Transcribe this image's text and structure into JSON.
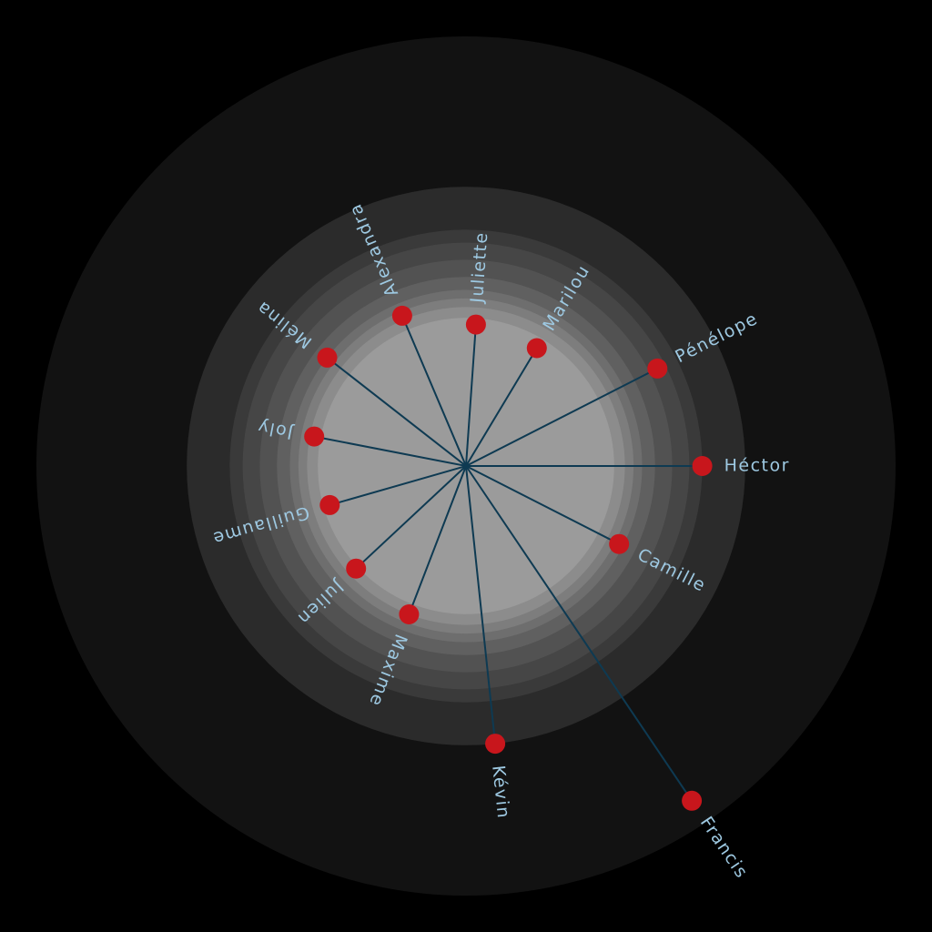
{
  "colors": {
    "background": "#000000",
    "node_fill": "#c8161c",
    "edge_stroke": "#0e3a52",
    "label_text": "#9ec9e2",
    "rings": [
      "#121212",
      "#2b2b2b",
      "#3a3a3a",
      "#464646",
      "#525252",
      "#606060",
      "#6e6e6e",
      "#7d7d7d",
      "#8c8c8c",
      "#9b9b9b"
    ]
  },
  "center_node": "",
  "nodes": [
    {
      "label": "Héctor",
      "angle": 0,
      "distance": 0.55
    },
    {
      "label": "Camille",
      "angle": 27,
      "distance": 0.4
    },
    {
      "label": "Francis",
      "angle": 56,
      "distance": 0.94
    },
    {
      "label": "Kévin",
      "angle": 84,
      "distance": 0.65
    },
    {
      "label": "Maxime",
      "angle": 111,
      "distance": 0.37
    },
    {
      "label": "Julien",
      "angle": 137,
      "distance": 0.35
    },
    {
      "label": "Guillaume",
      "angle": 164,
      "distance": 0.33
    },
    {
      "label": "Joly",
      "angle": 191,
      "distance": 0.36
    },
    {
      "label": "Mélina",
      "angle": 218,
      "distance": 0.41
    },
    {
      "label": "Alexandra",
      "angle": 247,
      "distance": 0.38
    },
    {
      "label": "Juliette",
      "angle": 274,
      "distance": 0.33
    },
    {
      "label": "Marilou",
      "angle": 301,
      "distance": 0.32
    },
    {
      "label": "Pénélope",
      "angle": 333,
      "distance": 0.5
    }
  ]
}
